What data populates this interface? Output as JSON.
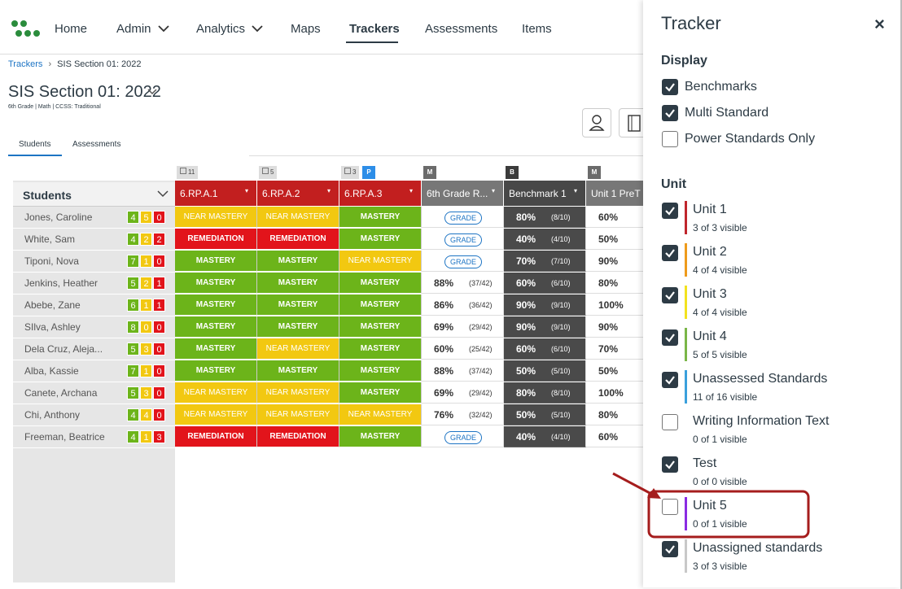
{
  "nav": {
    "items": [
      "Home",
      "Admin",
      "Analytics",
      "Maps",
      "Trackers",
      "Assessments",
      "Items"
    ],
    "active": "Trackers"
  },
  "breadcrumb": [
    "Trackers",
    "SIS Section 01: 2022"
  ],
  "section": {
    "title": "SIS Section 01: 2022",
    "meta": "6th Grade | Math | CCSS: Traditional"
  },
  "tabs": [
    "Students",
    "Assessments"
  ],
  "table": {
    "header": "Students",
    "columns": [
      {
        "badge": "11",
        "label": "6.RP.A.1"
      },
      {
        "badge": "5",
        "label": "6.RP.A.2"
      },
      {
        "badge": "3",
        "tag": "P",
        "label": "6.RP.A.3"
      },
      {
        "tag": "M",
        "label": "6th Grade R..."
      },
      {
        "tag": "B",
        "label": "Benchmark 1"
      },
      {
        "tag": "M",
        "label": "Unit 1 PreT"
      }
    ],
    "rows": [
      {
        "name": "Jones, Caroline",
        "counts": [
          4,
          5,
          0
        ],
        "cells": [
          "NEAR MASTERY",
          "NEAR MASTERY",
          "MASTERY",
          "GRADE",
          {
            "score": "80%",
            "detail": "(8/10)"
          },
          {
            "score": "60%"
          }
        ]
      },
      {
        "name": "White, Sam",
        "counts": [
          4,
          2,
          2
        ],
        "cells": [
          "REMEDIATION",
          "REMEDIATION",
          "MASTERY",
          "GRADE",
          {
            "score": "40%",
            "detail": "(4/10)"
          },
          {
            "score": "50%"
          }
        ]
      },
      {
        "name": "Tiponi, Nova",
        "counts": [
          7,
          1,
          0
        ],
        "cells": [
          "MASTERY",
          "MASTERY",
          "NEAR MASTERY",
          "GRADE",
          {
            "score": "70%",
            "detail": "(7/10)"
          },
          {
            "score": "90%"
          }
        ]
      },
      {
        "name": "Jenkins, Heather",
        "counts": [
          5,
          2,
          1
        ],
        "cells": [
          "MASTERY",
          "MASTERY",
          "MASTERY",
          {
            "score": "88%",
            "detail": "(37/42)"
          },
          {
            "score": "60%",
            "detail": "(6/10)"
          },
          {
            "score": "80%"
          }
        ]
      },
      {
        "name": "Abebe, Zane",
        "counts": [
          6,
          1,
          1
        ],
        "cells": [
          "MASTERY",
          "MASTERY",
          "MASTERY",
          {
            "score": "86%",
            "detail": "(36/42)"
          },
          {
            "score": "90%",
            "detail": "(9/10)"
          },
          {
            "score": "100%"
          }
        ]
      },
      {
        "name": "SIlva, Ashley",
        "counts": [
          8,
          0,
          0
        ],
        "cells": [
          "MASTERY",
          "MASTERY",
          "MASTERY",
          {
            "score": "69%",
            "detail": "(29/42)"
          },
          {
            "score": "90%",
            "detail": "(9/10)"
          },
          {
            "score": "90%"
          }
        ]
      },
      {
        "name": "Dela Cruz, Aleja...",
        "counts": [
          5,
          3,
          0
        ],
        "cells": [
          "MASTERY",
          "NEAR MASTERY",
          "MASTERY",
          {
            "score": "60%",
            "detail": "(25/42)"
          },
          {
            "score": "60%",
            "detail": "(6/10)"
          },
          {
            "score": "70%"
          }
        ]
      },
      {
        "name": "Alba, Kassie",
        "counts": [
          7,
          1,
          0
        ],
        "cells": [
          "MASTERY",
          "MASTERY",
          "MASTERY",
          {
            "score": "88%",
            "detail": "(37/42)"
          },
          {
            "score": "50%",
            "detail": "(5/10)"
          },
          {
            "score": "50%"
          }
        ]
      },
      {
        "name": "Canete, Archana",
        "counts": [
          5,
          3,
          0
        ],
        "cells": [
          "NEAR MASTERY",
          "NEAR MASTERY",
          "MASTERY",
          {
            "score": "69%",
            "detail": "(29/42)"
          },
          {
            "score": "80%",
            "detail": "(8/10)"
          },
          {
            "score": "100%"
          }
        ]
      },
      {
        "name": "Chi, Anthony",
        "counts": [
          4,
          4,
          0
        ],
        "cells": [
          "NEAR MASTERY",
          "NEAR MASTERY",
          "NEAR MASTERY",
          {
            "score": "76%",
            "detail": "(32/42)"
          },
          {
            "score": "50%",
            "detail": "(5/10)"
          },
          {
            "score": "80%"
          }
        ]
      },
      {
        "name": "Freeman, Beatrice",
        "counts": [
          4,
          1,
          3
        ],
        "cells": [
          "REMEDIATION",
          "REMEDIATION",
          "MASTERY",
          "GRADE",
          {
            "score": "40%",
            "detail": "(4/10)"
          },
          {
            "score": "60%"
          }
        ]
      }
    ]
  },
  "panel": {
    "title": "Tracker",
    "close": "×",
    "display": {
      "heading": "Display",
      "options": [
        {
          "label": "Benchmarks",
          "checked": true
        },
        {
          "label": "Multi Standard",
          "checked": true
        },
        {
          "label": "Power Standards Only",
          "checked": false
        }
      ]
    },
    "unit": {
      "heading": "Unit",
      "options": [
        {
          "label": "Unit 1",
          "sub": "3 of 3 visible",
          "checked": true,
          "color": "#c0262d"
        },
        {
          "label": "Unit 2",
          "sub": "4 of 4 visible",
          "checked": true,
          "color": "#ee9b1c"
        },
        {
          "label": "Unit 3",
          "sub": "4 of 4 visible",
          "checked": true,
          "color": "#f2e21f"
        },
        {
          "label": "Unit 4",
          "sub": "5 of 5 visible",
          "checked": true,
          "color": "#7ab648"
        },
        {
          "label": "Unassessed Standards",
          "sub": "11 of 16 visible",
          "checked": true,
          "color": "#3aa0dc"
        },
        {
          "label": "Writing Information Text",
          "sub": "0 of 1 visible",
          "checked": false
        },
        {
          "label": "Test",
          "sub": "0 of 0 visible",
          "checked": true
        },
        {
          "label": "Unit 5",
          "sub": "0 of 1 visible",
          "checked": false,
          "color": "#8a2be2"
        },
        {
          "label": "Unassigned standards",
          "sub": "3 of 3 visible",
          "checked": true,
          "color": "#c8c8c8"
        }
      ]
    }
  }
}
